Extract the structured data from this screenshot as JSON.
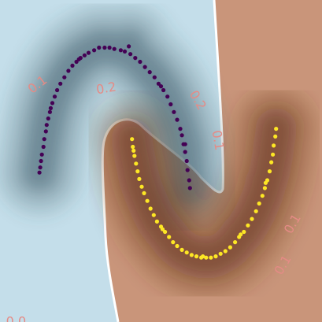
{
  "chart_data": {
    "type": "scatter",
    "title": "",
    "xlabel": "",
    "ylabel": "",
    "xlim": [
      -1.5,
      2.5
    ],
    "ylim": [
      -1.0,
      1.5
    ],
    "grid": false,
    "legend": "none",
    "background": {
      "type": "decision-regions",
      "regions": [
        {
          "class": 0,
          "color": "#c4deea"
        },
        {
          "class": 1,
          "color": "#c9957a"
        }
      ],
      "contour_colors": {
        "class0_dark": "#3b5766",
        "class1_dark": "#5a2a12"
      }
    },
    "contour_labels": [
      {
        "text": "0.1",
        "x": -1.03,
        "y": 0.84,
        "angle": -38
      },
      {
        "text": "0.2",
        "x": -0.18,
        "y": 0.81,
        "angle": -10
      },
      {
        "text": "0.2",
        "x": 0.95,
        "y": 0.72,
        "angle": 60
      },
      {
        "text": "0.1",
        "x": 1.2,
        "y": 0.41,
        "angle": 80
      },
      {
        "text": "0.1",
        "x": 2.14,
        "y": -0.24,
        "angle": -60
      },
      {
        "text": "0.1",
        "x": 2.02,
        "y": -0.56,
        "angle": -60
      },
      {
        "text": "0.0",
        "x": -1.3,
        "y": -1.0,
        "angle": 0
      }
    ],
    "series": [
      {
        "class": 0,
        "color": "#440154",
        "points": [
          [
            -1.0,
            0.2
          ],
          [
            -0.98,
            0.3
          ],
          [
            -0.95,
            0.42
          ],
          [
            -0.92,
            0.53
          ],
          [
            -0.88,
            0.63
          ],
          [
            -0.82,
            0.75
          ],
          [
            -0.75,
            0.85
          ],
          [
            -0.65,
            0.95
          ],
          [
            -0.55,
            1.02
          ],
          [
            -0.45,
            1.07
          ],
          [
            -0.33,
            1.11
          ],
          [
            -0.2,
            1.13
          ],
          [
            -0.08,
            1.12
          ],
          [
            0.05,
            1.1
          ],
          [
            0.18,
            1.05
          ],
          [
            0.3,
            0.98
          ],
          [
            0.42,
            0.9
          ],
          [
            0.53,
            0.8
          ],
          [
            0.62,
            0.69
          ],
          [
            0.7,
            0.57
          ],
          [
            0.76,
            0.45
          ],
          [
            0.8,
            0.32
          ],
          [
            0.83,
            0.18
          ],
          [
            0.86,
            0.04
          ],
          [
            -0.99,
            0.25
          ],
          [
            -0.93,
            0.48
          ],
          [
            -0.85,
            0.7
          ],
          [
            -0.7,
            0.9
          ],
          [
            -0.5,
            1.05
          ],
          [
            -0.27,
            1.13
          ],
          [
            0.0,
            1.11
          ],
          [
            0.24,
            1.02
          ],
          [
            0.47,
            0.85
          ],
          [
            0.66,
            0.63
          ],
          [
            0.78,
            0.38
          ],
          [
            0.85,
            0.1
          ],
          [
            -1.01,
            0.16
          ],
          [
            -0.9,
            0.58
          ],
          [
            -0.6,
            0.99
          ],
          [
            -0.14,
            1.13
          ],
          [
            0.36,
            0.94
          ],
          [
            0.74,
            0.5
          ],
          [
            -0.96,
            0.36
          ],
          [
            -0.79,
            0.8
          ],
          [
            -0.4,
            1.09
          ],
          [
            0.12,
            1.08
          ],
          [
            0.58,
            0.75
          ],
          [
            0.82,
            0.25
          ],
          [
            -0.87,
            0.66
          ],
          [
            -0.52,
            1.04
          ],
          [
            0.1,
            1.14
          ],
          [
            0.5,
            0.83
          ],
          [
            0.8,
            0.38
          ]
        ]
      },
      {
        "class": 1,
        "color": "#fde725",
        "points": [
          [
            0.14,
            0.42
          ],
          [
            0.17,
            0.29
          ],
          [
            0.21,
            0.17
          ],
          [
            0.26,
            0.05
          ],
          [
            0.33,
            -0.06
          ],
          [
            0.41,
            -0.17
          ],
          [
            0.5,
            -0.26
          ],
          [
            0.6,
            -0.34
          ],
          [
            0.7,
            -0.41
          ],
          [
            0.82,
            -0.46
          ],
          [
            0.94,
            -0.49
          ],
          [
            1.06,
            -0.5
          ],
          [
            1.18,
            -0.49
          ],
          [
            1.3,
            -0.45
          ],
          [
            1.42,
            -0.38
          ],
          [
            1.53,
            -0.3
          ],
          [
            1.63,
            -0.2
          ],
          [
            1.72,
            -0.08
          ],
          [
            1.79,
            0.04
          ],
          [
            1.85,
            0.17
          ],
          [
            1.89,
            0.3
          ],
          [
            1.92,
            0.44
          ],
          [
            0.15,
            0.36
          ],
          [
            0.23,
            0.11
          ],
          [
            0.37,
            -0.12
          ],
          [
            0.55,
            -0.3
          ],
          [
            0.76,
            -0.44
          ],
          [
            1.0,
            -0.5
          ],
          [
            1.24,
            -0.47
          ],
          [
            1.47,
            -0.34
          ],
          [
            1.68,
            -0.14
          ],
          [
            1.82,
            0.1
          ],
          [
            1.9,
            0.37
          ],
          [
            0.19,
            0.23
          ],
          [
            0.45,
            -0.22
          ],
          [
            0.88,
            -0.48
          ],
          [
            1.36,
            -0.42
          ],
          [
            1.76,
            -0.02
          ],
          [
            1.93,
            0.5
          ],
          [
            0.29,
            0.0
          ],
          [
            0.65,
            -0.38
          ],
          [
            1.12,
            -0.5
          ],
          [
            1.58,
            -0.25
          ],
          [
            1.87,
            0.24
          ],
          [
            0.16,
            0.33
          ],
          [
            0.52,
            -0.28
          ],
          [
            1.02,
            -0.49
          ],
          [
            1.49,
            -0.32
          ],
          [
            1.8,
            0.08
          ]
        ]
      }
    ]
  }
}
